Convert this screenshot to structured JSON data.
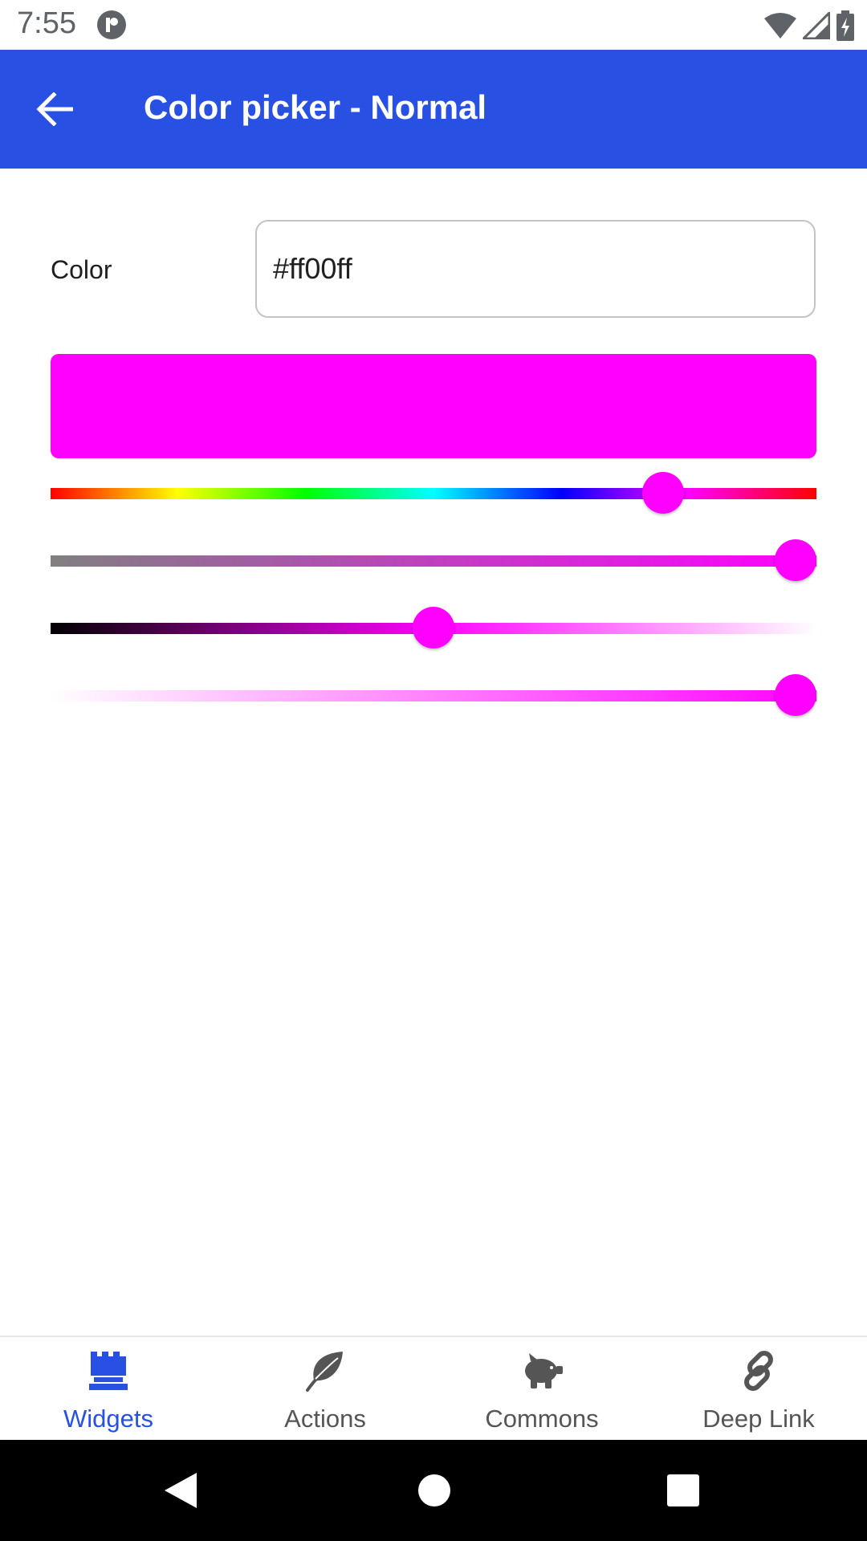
{
  "status_bar": {
    "time": "7:55"
  },
  "app_bar": {
    "title": "Color picker - Normal"
  },
  "form": {
    "color_label": "Color",
    "color_value": "#ff00ff"
  },
  "colors": {
    "accent": "#2850e3",
    "selected_color": "#ff00ff",
    "nav_inactive": "#555555"
  },
  "sliders": {
    "hue_fraction": 0.817,
    "saturation_fraction": 1.0,
    "lightness_fraction": 0.5,
    "alpha_fraction": 1.0
  },
  "bottom_nav": {
    "items": [
      {
        "label": "Widgets",
        "icon": "widgets-icon",
        "active": true
      },
      {
        "label": "Actions",
        "icon": "leaf-icon",
        "active": false
      },
      {
        "label": "Commons",
        "icon": "piggy-bank-icon",
        "active": false
      },
      {
        "label": "Deep Link",
        "icon": "link-icon",
        "active": false
      }
    ]
  }
}
